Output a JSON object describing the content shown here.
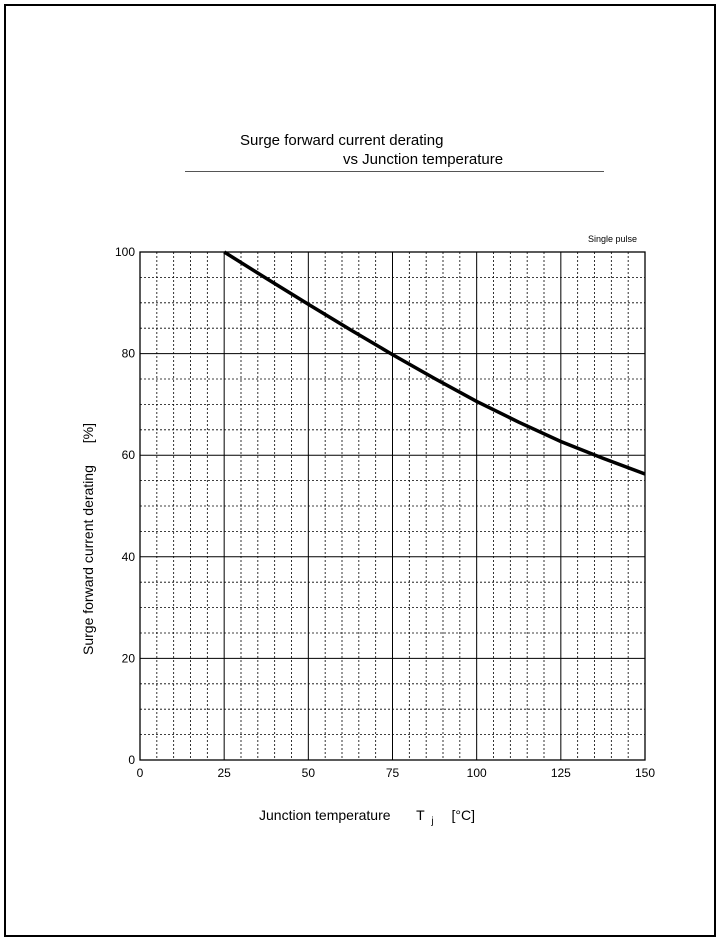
{
  "title_line1": "Surge forward current derating",
  "title_line2": "vs Junction temperature",
  "chart_data": {
    "type": "line",
    "xlabel": "Junction temperature",
    "xlabel_symbol": "T",
    "xlabel_subscript": "j",
    "xlabel_unit": "[°C]",
    "ylabel": "Surge forward current derating",
    "ylabel_unit": "[%]",
    "annotation": "Single pulse",
    "xlim": [
      0,
      150
    ],
    "ylim": [
      0,
      100
    ],
    "x_ticks": [
      "0",
      "25",
      "50",
      "75",
      "100",
      "125",
      "150"
    ],
    "y_ticks": [
      "0",
      "20",
      "40",
      "60",
      "80",
      "100"
    ],
    "grid": "major solid, minor dotted",
    "series": [
      {
        "x": [
          25,
          37.5,
          50,
          62.5,
          75,
          87.5,
          100,
          112.5,
          125,
          137.5,
          150
        ],
        "values": [
          100,
          94.8,
          89.7,
          84.7,
          79.8,
          75.1,
          70.6,
          66.5,
          62.7,
          59.4,
          56.3
        ]
      }
    ]
  }
}
